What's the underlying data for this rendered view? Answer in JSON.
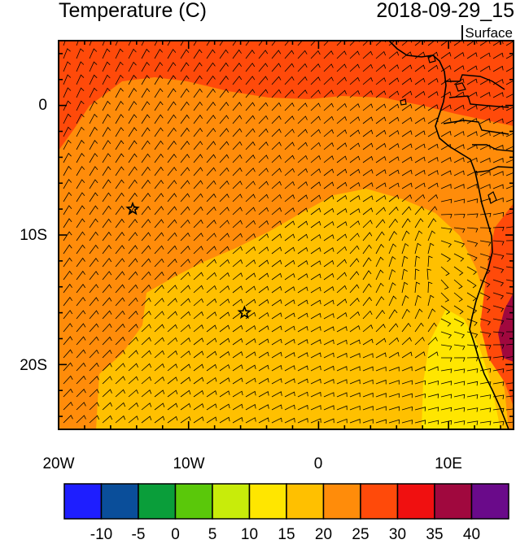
{
  "title_left": "Temperature (C)",
  "title_right": "2018-09-29_15",
  "level_label": "Surface",
  "lon_ticks": [
    {
      "value": -20,
      "label": "20W"
    },
    {
      "value": -10,
      "label": "10W"
    },
    {
      "value": 0,
      "label": "0"
    },
    {
      "value": 10,
      "label": "10E"
    }
  ],
  "lat_ticks": [
    {
      "value": 0,
      "label": "0"
    },
    {
      "value": -10,
      "label": "10S"
    },
    {
      "value": -20,
      "label": "20S"
    }
  ],
  "extent": {
    "lon": [
      -20,
      15
    ],
    "lat": [
      -25,
      5
    ]
  },
  "colorbar": {
    "labels": [
      "-10",
      "-5",
      "0",
      "5",
      "10",
      "15",
      "20",
      "25",
      "30",
      "35",
      "40"
    ],
    "colors": [
      "#1e1eff",
      "#0a4e9a",
      "#0a9e3a",
      "#5ac80a",
      "#c8ec0a",
      "#ffe600",
      "#ffc000",
      "#ff8c0a",
      "#ff4a0a",
      "#f01010",
      "#a0083e",
      "#6a0a8a"
    ]
  },
  "markers": [
    {
      "name": "star-marker-1",
      "lon": -14.3,
      "lat": -8.0
    },
    {
      "name": "star-marker-2",
      "lon": -5.7,
      "lat": -16.0
    }
  ],
  "chart_data": {
    "type": "heatmap",
    "variable": "Temperature (C)",
    "level": "Surface",
    "time": "2018-09-29_15",
    "colorbar_levels": [
      -10,
      -5,
      0,
      5,
      10,
      15,
      20,
      25,
      30,
      35,
      40
    ],
    "regions": [
      {
        "area": "north band (about 1N-5N, 20W-10E)",
        "range": "25-30"
      },
      {
        "area": "northwest and central ocean",
        "range": "20-25"
      },
      {
        "area": "south-central ocean",
        "range": "15-20"
      },
      {
        "area": "near Namibian coast (about 12S-24S, 10E-13E)",
        "range": "10-15"
      },
      {
        "area": "African interior near coast",
        "range": "30-40"
      }
    ],
    "overlay": "wind barbs"
  }
}
